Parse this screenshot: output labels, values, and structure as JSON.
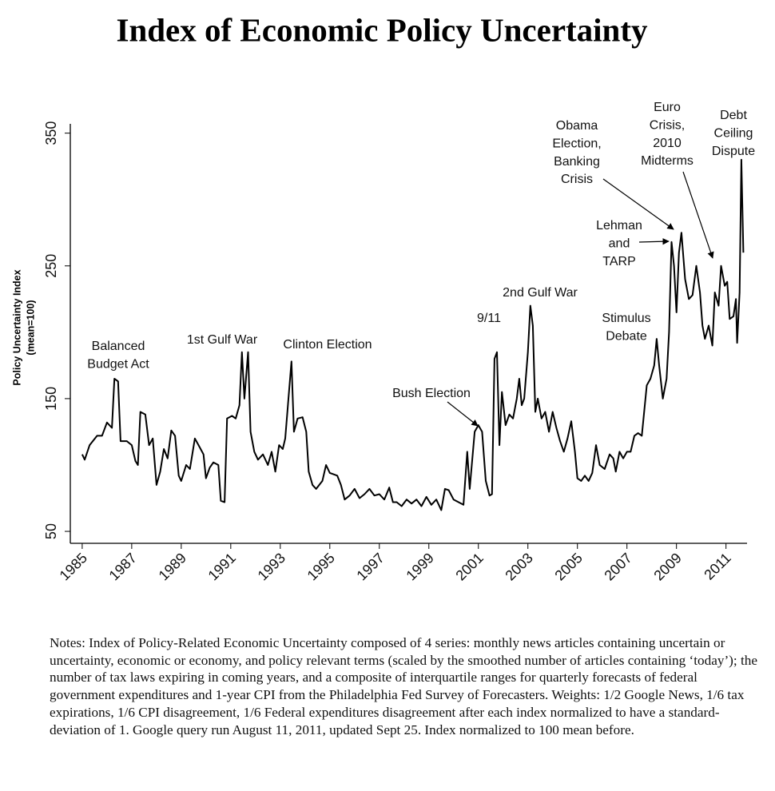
{
  "chart_data": {
    "type": "line",
    "title": "Index of Economic Policy Uncertainty",
    "y_label": [
      "Policy Uncertainty Index",
      "(mean=100)"
    ],
    "notes": "Notes: Index of Policy-Related Economic Uncertainty composed of 4 series: monthly news articles containing uncertain or uncertainty, economic or economy, and policy relevant terms (scaled by the smoothed number of articles containing ‘today’); the number of tax laws expiring in coming years, and a composite of interquartile ranges for quarterly forecasts of federal government expenditures and 1-year CPI from the Philadelphia Fed Survey of Forecasters. Weights: 1/2 Google News, 1/6 tax expirations, 1/6 CPI disagreement, 1/6 Federal expenditures disagreement after each index normalized to have a standard-deviation of 1. Google query run August 11, 2011, updated Sept 25. Index normalized to 100 mean before.",
    "annotations": [
      [
        "Balanced",
        "Budget Act"
      ],
      [
        "1st Gulf War"
      ],
      [
        "Clinton Election"
      ],
      [
        "Bush Election"
      ],
      [
        "9/11"
      ],
      [
        "2nd Gulf War"
      ],
      [
        "Stimulus",
        "Debate"
      ],
      [
        "Lehman",
        "and",
        "TARP"
      ],
      [
        "Obama",
        "Election,",
        "Banking",
        "Crisis"
      ],
      [
        "Euro",
        "Crisis,",
        "2010",
        "Midterms"
      ],
      [
        "Debt",
        "Ceiling",
        "Dispute"
      ]
    ],
    "color": "#000000",
    "xlim": [
      1984.52,
      2011.85
    ],
    "xticks": [
      1985,
      1987,
      1989,
      1991,
      1993,
      1995,
      1997,
      1999,
      2001,
      2003,
      2005,
      2007,
      2009,
      2011
    ],
    "ylim": [
      41,
      357
    ],
    "yticks": [
      50,
      150,
      250,
      350
    ],
    "x": [
      1985.0,
      1985.1,
      1985.3,
      1985.6,
      1985.8,
      1986.0,
      1986.2,
      1986.3,
      1986.45,
      1986.55,
      1986.8,
      1987.0,
      1987.15,
      1987.25,
      1987.35,
      1987.55,
      1987.7,
      1987.85,
      1988.0,
      1988.15,
      1988.3,
      1988.45,
      1988.6,
      1988.75,
      1988.9,
      1989.0,
      1989.2,
      1989.35,
      1989.55,
      1989.7,
      1989.9,
      1990.0,
      1990.15,
      1990.3,
      1990.5,
      1990.6,
      1990.75,
      1990.85,
      1991.05,
      1991.2,
      1991.35,
      1991.45,
      1991.55,
      1991.7,
      1991.8,
      1991.95,
      1992.1,
      1992.3,
      1992.5,
      1992.65,
      1992.8,
      1992.95,
      1993.1,
      1993.2,
      1993.35,
      1993.45,
      1993.55,
      1993.7,
      1993.9,
      1994.05,
      1994.15,
      1994.3,
      1994.45,
      1994.7,
      1994.85,
      1995.0,
      1995.15,
      1995.3,
      1995.45,
      1995.6,
      1995.8,
      1996.0,
      1996.2,
      1996.4,
      1996.6,
      1996.8,
      1997.0,
      1997.2,
      1997.4,
      1997.55,
      1997.7,
      1997.9,
      1998.1,
      1998.3,
      1998.5,
      1998.7,
      1998.9,
      1999.1,
      1999.3,
      1999.5,
      1999.65,
      1999.8,
      2000.0,
      2000.2,
      2000.4,
      2000.55,
      2000.65,
      2000.85,
      2001.0,
      2001.15,
      2001.3,
      2001.45,
      2001.55,
      2001.65,
      2001.75,
      2001.85,
      2001.95,
      2002.1,
      2002.25,
      2002.4,
      2002.55,
      2002.65,
      2002.75,
      2002.85,
      2003.0,
      2003.1,
      2003.2,
      2003.3,
      2003.4,
      2003.55,
      2003.7,
      2003.85,
      2004.0,
      2004.15,
      2004.3,
      2004.45,
      2004.6,
      2004.75,
      2004.9,
      2005.0,
      2005.15,
      2005.3,
      2005.45,
      2005.6,
      2005.75,
      2005.9,
      2006.1,
      2006.3,
      2006.45,
      2006.55,
      2006.7,
      2006.85,
      2007.0,
      2007.15,
      2007.3,
      2007.45,
      2007.6,
      2007.8,
      2007.95,
      2008.1,
      2008.2,
      2008.3,
      2008.45,
      2008.6,
      2008.7,
      2008.8,
      2008.9,
      2009.0,
      2009.1,
      2009.2,
      2009.35,
      2009.5,
      2009.65,
      2009.8,
      2009.95,
      2010.05,
      2010.15,
      2010.3,
      2010.45,
      2010.55,
      2010.7,
      2010.8,
      2010.95,
      2011.05,
      2011.15,
      2011.3,
      2011.4,
      2011.45,
      2011.55,
      2011.62,
      2011.7
    ],
    "values": [
      108,
      104,
      115,
      122,
      122,
      132,
      128,
      165,
      163,
      118,
      118,
      115,
      103,
      100,
      140,
      138,
      115,
      120,
      85,
      95,
      112,
      105,
      126,
      122,
      92,
      88,
      100,
      97,
      120,
      115,
      108,
      90,
      98,
      102,
      100,
      73,
      72,
      135,
      137,
      135,
      145,
      185,
      150,
      185,
      125,
      110,
      104,
      108,
      100,
      110,
      95,
      115,
      112,
      120,
      155,
      178,
      125,
      135,
      136,
      125,
      95,
      85,
      82,
      88,
      100,
      94,
      93,
      92,
      85,
      74,
      77,
      82,
      75,
      78,
      82,
      77,
      78,
      74,
      83,
      72,
      72,
      69,
      74,
      71,
      74,
      69,
      76,
      70,
      74,
      66,
      82,
      81,
      74,
      72,
      70,
      110,
      82,
      125,
      130,
      125,
      88,
      77,
      78,
      180,
      185,
      115,
      155,
      130,
      138,
      135,
      150,
      165,
      145,
      150,
      185,
      220,
      205,
      140,
      150,
      135,
      140,
      125,
      140,
      128,
      118,
      110,
      120,
      133,
      110,
      90,
      88,
      92,
      88,
      94,
      115,
      100,
      97,
      108,
      105,
      95,
      110,
      105,
      110,
      110,
      122,
      124,
      122,
      160,
      165,
      175,
      195,
      175,
      150,
      165,
      200,
      268,
      250,
      215,
      260,
      275,
      240,
      225,
      228,
      250,
      230,
      205,
      195,
      205,
      190,
      230,
      220,
      250,
      235,
      238,
      210,
      212,
      225,
      192,
      230,
      330,
      260
    ]
  }
}
